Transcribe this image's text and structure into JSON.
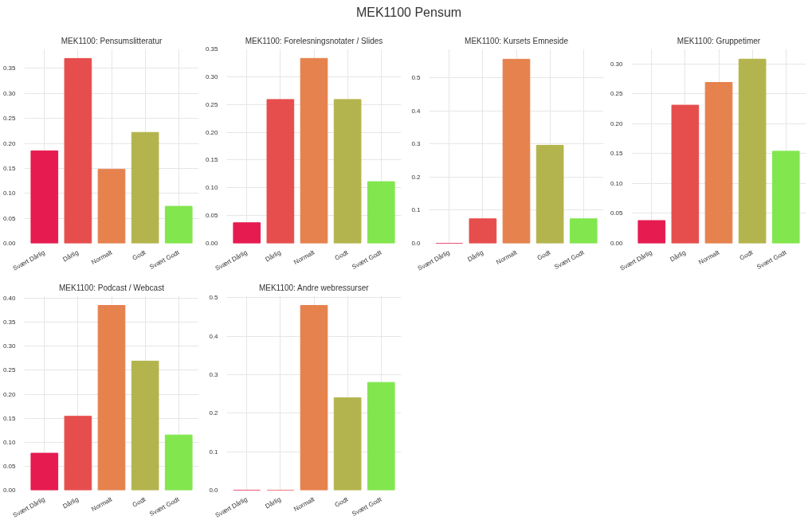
{
  "chart_data": [
    {
      "type": "other",
      "title": "MEK1100 Pensum"
    },
    {
      "type": "bar",
      "title": "MEK1100: Pensumslitteratur",
      "categories": [
        "Svært Dårlig",
        "Dårlig",
        "Normalt",
        "Godt",
        "Svært Godt"
      ],
      "values": [
        0.185,
        0.37,
        0.148,
        0.222,
        0.074
      ],
      "colors": [
        "#e61c50",
        "#e64e4e",
        "#e6824e",
        "#b4b44e",
        "#82e64e"
      ],
      "ylim": [
        0,
        0.389
      ],
      "yticks": [
        {
          "value": 0,
          "label": "0.00"
        },
        {
          "value": 0.05,
          "label": "0.05"
        },
        {
          "value": 0.1,
          "label": "0.10"
        },
        {
          "value": 0.15,
          "label": "0.15"
        },
        {
          "value": 0.2,
          "label": "0.20"
        },
        {
          "value": 0.25,
          "label": "0.25"
        },
        {
          "value": 0.3,
          "label": "0.30"
        },
        {
          "value": 0.35,
          "label": "0.35"
        }
      ],
      "grid": true
    },
    {
      "type": "bar",
      "title": "MEK1100: Forelesningsnotater / Slides",
      "categories": [
        "Svært Dårlig",
        "Dårlig",
        "Normalt",
        "Godt",
        "Svært Godt"
      ],
      "values": [
        0.037,
        0.259,
        0.333,
        0.259,
        0.111
      ],
      "colors": [
        "#e61c50",
        "#e64e4e",
        "#e6824e",
        "#b4b44e",
        "#82e64e"
      ],
      "ylim": [
        0,
        0.35
      ],
      "yticks": [
        {
          "value": 0,
          "label": "0.00"
        },
        {
          "value": 0.05,
          "label": "0.05"
        },
        {
          "value": 0.1,
          "label": "0.10"
        },
        {
          "value": 0.15,
          "label": "0.15"
        },
        {
          "value": 0.2,
          "label": "0.20"
        },
        {
          "value": 0.25,
          "label": "0.25"
        },
        {
          "value": 0.3,
          "label": "0.30"
        },
        {
          "value": 0.35,
          "label": "0.35"
        }
      ],
      "grid": true
    },
    {
      "type": "bar",
      "title": "MEK1100: Kursets Emneside",
      "categories": [
        "Svært Dårlig",
        "Dårlig",
        "Normalt",
        "Godt",
        "Svært Godt"
      ],
      "values": [
        0,
        0.074,
        0.556,
        0.296,
        0.074
      ],
      "colors": [
        "#e61c50",
        "#e64e4e",
        "#e6824e",
        "#b4b44e",
        "#82e64e"
      ],
      "ylim": [
        0,
        0.587
      ],
      "yticks": [
        {
          "value": 0,
          "label": "0.0"
        },
        {
          "value": 0.1,
          "label": "0.1"
        },
        {
          "value": 0.2,
          "label": "0.2"
        },
        {
          "value": 0.3,
          "label": "0.3"
        },
        {
          "value": 0.4,
          "label": "0.4"
        },
        {
          "value": 0.5,
          "label": "0.5"
        }
      ],
      "grid": true
    },
    {
      "type": "bar",
      "title": "MEK1100: Gruppetimer",
      "categories": [
        "Svært Dårlig",
        "Dårlig",
        "Normalt",
        "Godt",
        "Svært Godt"
      ],
      "values": [
        0.038,
        0.231,
        0.269,
        0.308,
        0.154
      ],
      "colors": [
        "#e61c50",
        "#e64e4e",
        "#e6824e",
        "#b4b44e",
        "#82e64e"
      ],
      "ylim": [
        0,
        0.325
      ],
      "yticks": [
        {
          "value": 0,
          "label": "0.00"
        },
        {
          "value": 0.05,
          "label": "0.05"
        },
        {
          "value": 0.1,
          "label": "0.10"
        },
        {
          "value": 0.15,
          "label": "0.15"
        },
        {
          "value": 0.2,
          "label": "0.20"
        },
        {
          "value": 0.25,
          "label": "0.25"
        },
        {
          "value": 0.3,
          "label": "0.30"
        }
      ],
      "grid": true
    },
    {
      "type": "bar",
      "title": "MEK1100: Podcast / Webcast",
      "categories": [
        "Svært Dårlig",
        "Dårlig",
        "Normalt",
        "Godt",
        "Svært Godt"
      ],
      "values": [
        0.077,
        0.154,
        0.385,
        0.269,
        0.115
      ],
      "colors": [
        "#e61c50",
        "#e64e4e",
        "#e6824e",
        "#b4b44e",
        "#82e64e"
      ],
      "ylim": [
        0,
        0.405
      ],
      "yticks": [
        {
          "value": 0,
          "label": "0.00"
        },
        {
          "value": 0.05,
          "label": "0.05"
        },
        {
          "value": 0.1,
          "label": "0.10"
        },
        {
          "value": 0.15,
          "label": "0.15"
        },
        {
          "value": 0.2,
          "label": "0.20"
        },
        {
          "value": 0.25,
          "label": "0.25"
        },
        {
          "value": 0.3,
          "label": "0.30"
        },
        {
          "value": 0.35,
          "label": "0.35"
        },
        {
          "value": 0.4,
          "label": "0.40"
        }
      ],
      "grid": true
    },
    {
      "type": "bar",
      "title": "MEK1100: Andre webressurser",
      "categories": [
        "Svært Dårlig",
        "Dårlig",
        "Normalt",
        "Godt",
        "Svært Godt"
      ],
      "values": [
        0,
        0,
        0.48,
        0.24,
        0.28
      ],
      "colors": [
        "#e61c50",
        "#e64e4e",
        "#e6824e",
        "#b4b44e",
        "#82e64e"
      ],
      "ylim": [
        0,
        0.505
      ],
      "yticks": [
        {
          "value": 0,
          "label": "0.0"
        },
        {
          "value": 0.1,
          "label": "0.1"
        },
        {
          "value": 0.2,
          "label": "0.2"
        },
        {
          "value": 0.3,
          "label": "0.3"
        },
        {
          "value": 0.4,
          "label": "0.4"
        },
        {
          "value": 0.5,
          "label": "0.5"
        }
      ],
      "grid": true
    }
  ]
}
